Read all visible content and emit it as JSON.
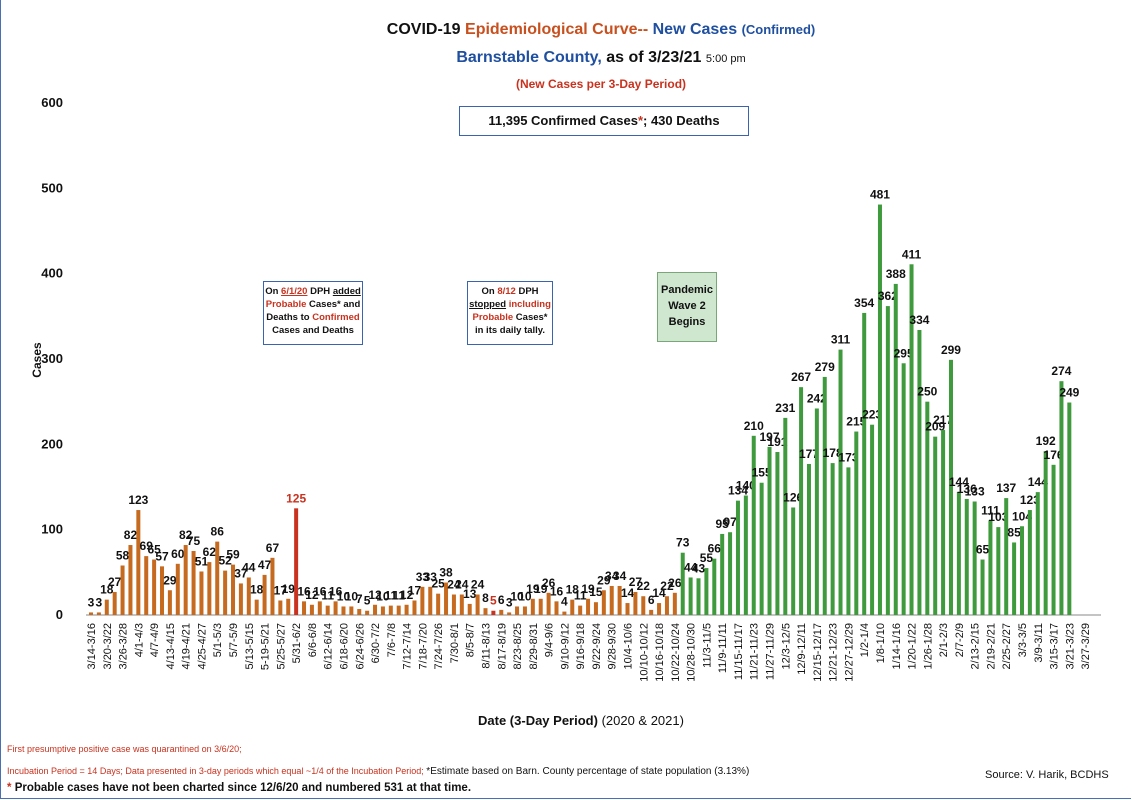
{
  "chart_data": {
    "type": "bar",
    "title": [
      "COVID-19",
      "Epidemiological Curve--",
      "New Cases",
      "(Confirmed)"
    ],
    "subtitle": [
      "Barnstable County,",
      "as of 3/23/21",
      "5:00 pm"
    ],
    "subtitle2": "(New Cases per 3-Day Period)",
    "totals": [
      "11,395 Confirmed Cases",
      "*",
      "; 430 Deaths"
    ],
    "annotations": [
      [
        "On",
        "6/1/20",
        "DPH",
        "added",
        "Probable",
        "Cases* and Deaths to",
        "Confirmed",
        "Cases and Deaths"
      ],
      [
        "On",
        "8/12",
        "DPH",
        "stopped",
        "including",
        "Probable",
        "Cases* in its daily tally."
      ],
      [
        "Pandemic Wave 2 Begins"
      ]
    ],
    "x_label": [
      "Date (3-Day Period)",
      "(2020 & 2021)"
    ],
    "y_label": "Cases",
    "footnotes": [
      "First presumptive positive case was quarantined on 3/6/20;",
      "Incubation Period = 14 Days; Data presented in 3-day periods which equal ~1/4 of the Incubation Period;",
      "*Estimate based on Barn. County percentage of state population (3.13%)",
      "*",
      "Probable cases have not been charted since 12/6/20 and numbered 531 at that time."
    ],
    "source": "Source: V. Harik, BCDHS",
    "categories": [
      "3/14-3/16",
      null,
      "3/20-3/22",
      null,
      "3/26-3/28",
      null,
      "4/1-4/3",
      null,
      "4/7-4/9",
      null,
      "4/13-4/15",
      null,
      "4/19-4/21",
      null,
      "4/25-4/27",
      null,
      "5/1-5/3",
      null,
      "5/7-5/9",
      null,
      "5/13-5/15",
      null,
      "5-19-5/21",
      null,
      "5/25-5/27",
      null,
      "5/31-6/2",
      null,
      "6/6-6/8",
      null,
      "6/12-6/14",
      null,
      "6/18-6/20",
      null,
      "6/24-6/26",
      null,
      "6/30-7/2",
      null,
      "7/6-7/8",
      null,
      "7/12-7/14",
      null,
      "7/18-7/20",
      null,
      "7/24-7/26",
      null,
      "7/30-8/1",
      null,
      "8/5-8/7",
      null,
      "8/11-8/13",
      null,
      "8/17-8/19",
      null,
      "8/23-8/25",
      null,
      "8/29-8/31",
      null,
      "9/4-9/6",
      null,
      "9/10-9/12",
      null,
      "9/16-9/18",
      null,
      "9/22-9/24",
      null,
      "9/28-9/30",
      null,
      "10/4-10/6",
      null,
      "10/10-10/12",
      null,
      "10/16-10/18",
      null,
      "10/22-10/24",
      null,
      "10/28-10/30",
      null,
      "11/3-11/5",
      null,
      "11/9-11/11",
      null,
      "11/15-11/17",
      null,
      "11/21-11/23",
      null,
      "11/27-11/29",
      null,
      "12/3-12/5",
      null,
      "12/9-12/11",
      null,
      "12/15-12/17",
      null,
      "12/21-12/23",
      null,
      "12/27-12/29",
      null,
      "1/2-1/4",
      null,
      "1/8-1/10",
      null,
      "1/14-1/16",
      null,
      "1/20-1/22",
      null,
      "1/26-1/28",
      null,
      "2/1-2/3",
      null,
      "2/7-2/9",
      null,
      "2/13-2/15",
      null,
      "2/19-2/21",
      null,
      "2/25-2/27",
      null,
      "3/3-3/5",
      null,
      "3/9-3/11",
      null,
      "3/15-3/17",
      null,
      "3/21-3/23",
      null,
      "3/27-3/29",
      null
    ],
    "values": [
      3,
      3,
      18,
      27,
      58,
      82,
      123,
      69,
      65,
      57,
      29,
      60,
      82,
      75,
      51,
      62,
      86,
      52,
      59,
      37,
      44,
      18,
      47,
      67,
      17,
      19,
      125,
      16,
      12,
      16,
      11,
      16,
      10,
      10,
      7,
      5,
      12,
      10,
      11,
      11,
      12,
      17,
      33,
      33,
      25,
      38,
      24,
      24,
      13,
      24,
      8,
      5,
      6,
      3,
      10,
      10,
      19,
      19,
      26,
      16,
      4,
      18,
      11,
      19,
      15,
      29,
      34,
      34,
      14,
      27,
      22,
      6,
      14,
      22,
      26,
      73,
      44,
      43,
      55,
      66,
      95,
      97,
      134,
      140,
      210,
      155,
      197,
      191,
      231,
      126,
      267,
      177,
      242,
      279,
      178,
      311,
      173,
      215,
      354,
      223,
      481,
      362,
      388,
      295,
      411,
      334,
      250,
      209,
      217,
      299,
      144,
      136,
      133,
      65,
      111,
      103,
      137,
      85,
      104,
      123,
      144,
      192,
      176,
      274,
      249,
      null,
      null,
      null
    ],
    "colors": [
      "#c56a1f",
      "#c56a1f",
      "#c56a1f",
      "#c56a1f",
      "#c56a1f",
      "#c56a1f",
      "#c56a1f",
      "#c56a1f",
      "#c56a1f",
      "#c56a1f",
      "#c56a1f",
      "#c56a1f",
      "#c56a1f",
      "#c56a1f",
      "#c56a1f",
      "#c56a1f",
      "#c56a1f",
      "#c56a1f",
      "#c56a1f",
      "#c56a1f",
      "#c56a1f",
      "#c56a1f",
      "#c56a1f",
      "#c56a1f",
      "#c56a1f",
      "#c56a1f",
      "#c8321e",
      "#c56a1f",
      "#c56a1f",
      "#c56a1f",
      "#c56a1f",
      "#c56a1f",
      "#c56a1f",
      "#c56a1f",
      "#c56a1f",
      "#c56a1f",
      "#c56a1f",
      "#c56a1f",
      "#c56a1f",
      "#c56a1f",
      "#c56a1f",
      "#c56a1f",
      "#c56a1f",
      "#c56a1f",
      "#c56a1f",
      "#c56a1f",
      "#c56a1f",
      "#c56a1f",
      "#c56a1f",
      "#c56a1f",
      "#c56a1f",
      "#c8321e",
      "#c56a1f",
      "#c56a1f",
      "#c56a1f",
      "#c56a1f",
      "#c56a1f",
      "#c56a1f",
      "#c56a1f",
      "#c56a1f",
      "#c56a1f",
      "#c56a1f",
      "#c56a1f",
      "#c56a1f",
      "#c56a1f",
      "#c56a1f",
      "#c56a1f",
      "#c56a1f",
      "#c56a1f",
      "#c56a1f",
      "#c56a1f",
      "#c56a1f",
      "#c56a1f",
      "#c56a1f",
      "#c56a1f",
      "#3e9a3c",
      "#3e9a3c",
      "#3e9a3c",
      "#3e9a3c",
      "#3e9a3c",
      "#3e9a3c",
      "#3e9a3c",
      "#3e9a3c",
      "#3e9a3c",
      "#3e9a3c",
      "#3e9a3c",
      "#3e9a3c",
      "#3e9a3c",
      "#3e9a3c",
      "#3e9a3c",
      "#3e9a3c",
      "#3e9a3c",
      "#3e9a3c",
      "#3e9a3c",
      "#3e9a3c",
      "#3e9a3c",
      "#3e9a3c",
      "#3e9a3c",
      "#3e9a3c",
      "#3e9a3c",
      "#3e9a3c",
      "#3e9a3c",
      "#3e9a3c",
      "#3e9a3c",
      "#3e9a3c",
      "#3e9a3c",
      "#3e9a3c",
      "#3e9a3c",
      "#3e9a3c",
      "#3e9a3c",
      "#3e9a3c",
      "#3e9a3c",
      "#3e9a3c",
      "#3e9a3c",
      "#3e9a3c",
      "#3e9a3c",
      "#3e9a3c",
      "#3e9a3c",
      "#3e9a3c",
      "#3e9a3c",
      "#3e9a3c",
      "#3e9a3c",
      "#3e9a3c",
      "#3e9a3c",
      "#3e9a3c",
      "#3e9a3c",
      "#3e9a3c",
      "#3e9a3c"
    ],
    "highlight_color": "#c8321e",
    "ylim": [
      0,
      600
    ],
    "yticks": [
      0,
      100,
      200,
      300,
      400,
      500,
      600
    ],
    "grid": false
  }
}
